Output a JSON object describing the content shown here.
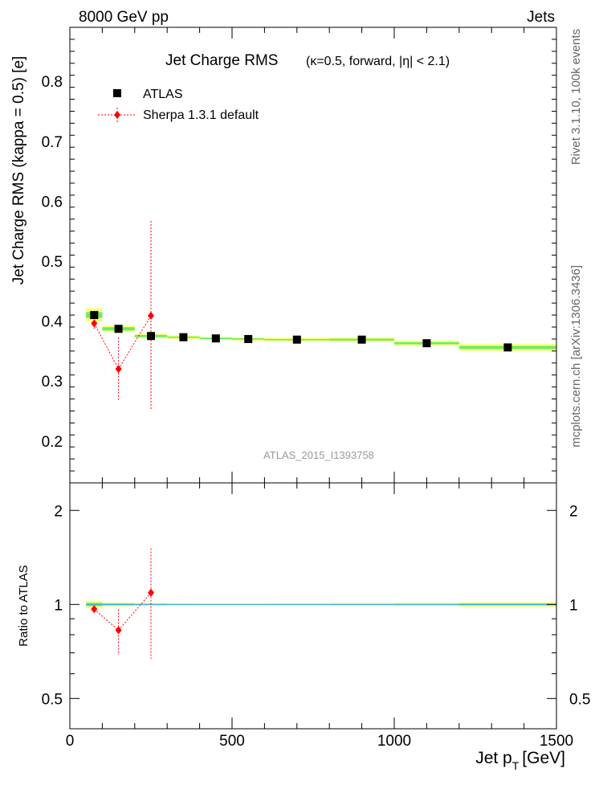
{
  "header": {
    "left": "8000 GeV pp",
    "right": "Jets"
  },
  "side_labels": {
    "rivet": "Rivet 3.1.10,  100k events",
    "mcplots": "mcplots.cern.ch [arXiv:1306.3436]"
  },
  "chart_data": {
    "type": "scatter",
    "title": "Jet Charge RMS",
    "subtitle": "(κ=0.5, forward, |η| < 2.1)",
    "watermark": "ATLAS_2015_I1393758",
    "xlabel": "Jet p_T [GeV]",
    "xlabel_main": "Jet p",
    "xlabel_sub": "T",
    "xlabel_unit": "[GeV]",
    "ylabel": "Jet Charge RMS (kappa = 0.5) [e]",
    "ratio_ylabel": "Ratio to ATLAS",
    "xlim": [
      0,
      1500
    ],
    "ylim": [
      0.13,
      0.89
    ],
    "ratio_ylim": [
      0.4,
      2.45
    ],
    "ratio_scale": "log",
    "legend_position": "top-left",
    "x_ticks": [
      "0",
      "500",
      "1000",
      "1500"
    ],
    "y_ticks": [
      "0.2",
      "0.3",
      "0.4",
      "0.5",
      "0.6",
      "0.7",
      "0.8"
    ],
    "ratio_ticks": [
      "0.5",
      "1",
      "2"
    ],
    "series": [
      {
        "name": "ATLAS",
        "color": "#000000",
        "marker": "square",
        "x": [
          75,
          150,
          250,
          350,
          450,
          550,
          700,
          900,
          1100,
          1350
        ],
        "x_low": [
          50,
          100,
          200,
          300,
          400,
          500,
          600,
          800,
          1000,
          1200
        ],
        "x_high": [
          100,
          200,
          300,
          400,
          500,
          600,
          800,
          1000,
          1200,
          1500
        ],
        "y": [
          0.41,
          0.387,
          0.375,
          0.373,
          0.371,
          0.37,
          0.369,
          0.369,
          0.363,
          0.356
        ],
        "band_stat": [
          0.012,
          0.007,
          0.005,
          0.003,
          0.003,
          0.003,
          0.003,
          0.004,
          0.005,
          0.007
        ],
        "band_total": [
          0.028,
          0.014,
          0.01,
          0.008,
          0.007,
          0.007,
          0.008,
          0.01,
          0.012,
          0.016
        ]
      },
      {
        "name": "Sherpa 1.3.1 default",
        "color": "#ff0000",
        "marker": "diamond",
        "x": [
          75,
          150,
          250
        ],
        "y": [
          0.396,
          0.32,
          0.409
        ],
        "err": [
          0.01,
          0.053,
          0.158
        ]
      }
    ]
  }
}
